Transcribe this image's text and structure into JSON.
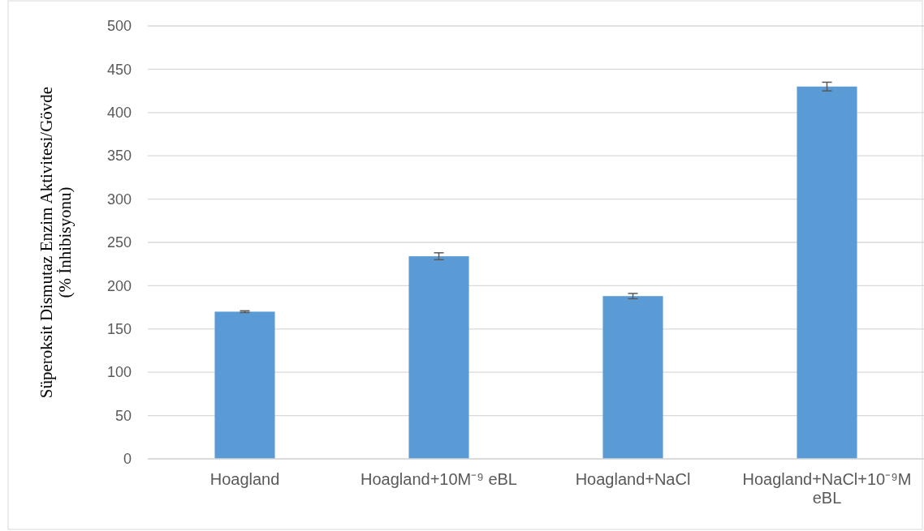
{
  "chart_data": {
    "type": "bar",
    "ylabel": "Süperoksit Dismutaz Enzim Aktivitesi/Gövde\n(% İnhibisyonu)",
    "categories": [
      "Hoagland",
      "Hoagland+10M⁻⁹  eBL",
      "Hoagland+NaCl",
      "Hoagland+NaCl+10⁻⁹M eBL"
    ],
    "values": [
      170,
      234,
      188,
      430
    ],
    "errors": [
      1,
      4,
      3,
      5
    ],
    "color": "#5b9bd5",
    "ylim": [
      0,
      500
    ],
    "yticks": [
      0,
      50,
      100,
      150,
      200,
      250,
      300,
      350,
      400,
      450,
      500
    ],
    "grid": "y"
  }
}
